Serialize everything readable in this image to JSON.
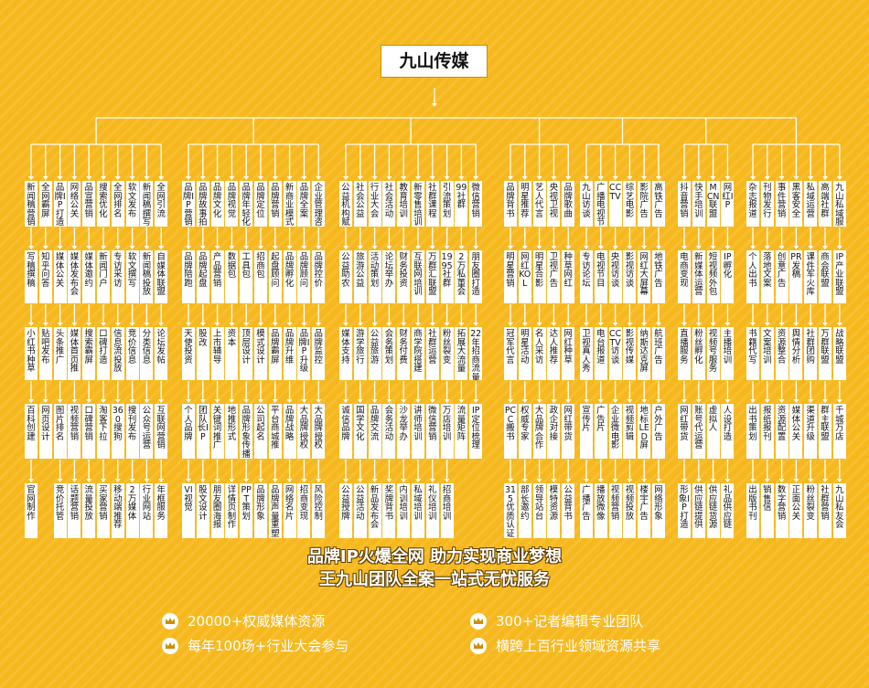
{
  "root": "九山传媒",
  "colors": {
    "background": "#f6b81c",
    "box": "#ffffff",
    "line": "#ffffff"
  },
  "groups": [
    {
      "columns": [
        [
          "新闻稿营销",
          "写稿撰稿",
          "小红书种草",
          "百科创建",
          "官网制作"
        ],
        [
          "全网霸屏",
          "知乎问答",
          "贴吧发布",
          "网页设计"
        ],
        [
          "品牌IP打造",
          "媒体公关",
          "头条推广",
          "图片排名",
          "竞价托管"
        ],
        [
          "网络公关",
          "媒体发布会",
          "媒体首页推",
          "视频营销",
          "话题营销"
        ],
        [
          "品宣营销",
          "媒体邀约",
          "搜索霸屏",
          "口碑营销",
          "流量投放"
        ],
        [
          "搜索优化",
          "新闻门户",
          "口碑打造",
          "淘客下拉",
          "网站页面",
          "买家营销"
        ],
        [
          "全网排名",
          "专访采访",
          "信息流投放",
          "360搜狗",
          "移动端推荐"
        ],
        [
          "软文发布",
          "软文撰写",
          "竞价信息",
          "搜刊发布",
          "2万媒体"
        ],
        [
          "新闻稿撰写",
          "新闻稿投放",
          "分类信息",
          "公众号运营",
          "行业网站"
        ],
        [
          "全网引流",
          "自媒体联盟",
          "论坛发帖",
          "互联网营销",
          "年框服务"
        ]
      ]
    },
    {
      "columns": [
        [
          "品牌IP营销",
          "品牌陪跑",
          "天使投资",
          "个人品牌",
          "VI视觉"
        ],
        [
          "品牌故事拍摄",
          "品牌起盘",
          "股改",
          "团队长IP",
          "股文设计"
        ],
        [
          "品牌文化",
          "产品营销",
          "上市辅导",
          "关键词推广",
          "朋友圈海报"
        ],
        [
          "品牌视觉",
          "数据包",
          "资本",
          "地推形式",
          "详情页制作"
        ],
        [
          "品牌年轻化",
          "工具包",
          "顶层设计",
          "品牌形象传播",
          "PPT策划"
        ],
        [
          "品牌定位",
          "招商包",
          "模式设计",
          "公司起名",
          "品牌形象"
        ],
        [
          "品牌营销",
          "起盘顾问",
          "品牌霸屏",
          "平台商城推",
          "品牌声量重塑"
        ],
        [
          "新商业模式",
          "品牌孵化",
          "品牌升维",
          "品牌战略",
          "网络名片"
        ],
        [
          "品牌全案",
          "品牌顾问",
          "品牌IP升级",
          "大品牌授权",
          "招商变现"
        ],
        [
          "企业管理咨询",
          "品牌控价",
          "品牌监控",
          "大品牌授权",
          "风险控制"
        ]
      ]
    },
    {
      "columns": [
        [
          "公益机构赋能",
          "公益助农",
          "媒体支持",
          "诚信品牌",
          "公益授牌"
        ],
        [
          "社会公益",
          "旅游公益",
          "游学旅行",
          "国学文化",
          "公益活动"
        ],
        [
          "行业大会",
          "活动策划",
          "公益旅游",
          "品牌交流",
          "新品发布会"
        ],
        [
          "社会活动",
          "论坛举办",
          "会务策划",
          "会务活动",
          "奖牌背书"
        ],
        [
          "教育培训",
          "财务投资",
          "财务付费",
          "沙龙举办",
          "内训培训"
        ],
        [
          "新零售培训",
          "互联网培训",
          "商学院搭建",
          "讲师培训",
          "私域培训"
        ],
        [
          "社群课程",
          "万群汇联盟",
          "社群运营",
          "微信营销",
          "礼仪培训"
        ],
        [
          "引流策划",
          "1995社群",
          "粉丝裂变",
          "万店培训",
          "招商培训"
        ],
        [
          "99社群",
          "2万私董会",
          "拓展大流量",
          "流量矩阵"
        ],
        [
          "微信营销",
          "朋友圈打造",
          "22年招商流量池",
          "IP定位梳理"
        ]
      ]
    },
    {
      "columns": [
        [
          "品牌背书",
          "明星营销",
          "冠军代言",
          "PCC搬书",
          "315优质认证"
        ],
        [
          "明星推荐",
          "网红KOL",
          "明星活动",
          "权威专家",
          "部长邀约"
        ],
        [
          "艺人代言",
          "明星合影",
          "名人采访",
          "大品牌合作",
          "领导站台"
        ],
        [
          "央视卫视",
          "卫视广告",
          "达人推荐",
          "政企对接",
          "模特资源"
        ],
        [
          "品牌歌曲",
          "种草网红",
          "网红种草",
          "网红带货",
          "公益背书"
        ]
      ]
    },
    {
      "columns": [
        [
          "九山访谈",
          "专访论坛",
          "卫视真人秀",
          "宣传片",
          "广播广告"
        ],
        [
          "广播电视节目",
          "电视节目",
          "电台报道",
          "广告片",
          "播放微像"
        ],
        [
          "CCTV",
          "央视访谈",
          "CCTV访谈",
          "企业微电影",
          "视频营销"
        ],
        [
          "综艺电影",
          "影视访谈",
          "影视传媒",
          "视频剪辑",
          "视频投放"
        ],
        [
          "影院广告",
          "网红大屏幕",
          "纳斯达克屏",
          "地标LED屏",
          "楼宇广告"
        ],
        [
          "高铁广告",
          "地铁广告",
          "航班广告",
          "户外广告",
          "网络形象"
        ]
      ]
    },
    {
      "columns": [
        [
          "抖音营销",
          "电商变现",
          "直播服务",
          "网红带货",
          "形象IP打造"
        ],
        [
          "快手培训",
          "新媒体运营",
          "粉丝孵化",
          "账号代运营",
          "供应链提供"
        ],
        [
          "MCN联盟",
          "短视频外包",
          "视频号服务",
          "虚拟人",
          "供应链货源"
        ],
        [
          "网红IP",
          "IP孵化",
          "主播培训",
          "人设打造",
          "网红包装",
          "礼品供应链"
        ]
      ]
    },
    {
      "columns": [
        [
          "杂志报道",
          "个人出书",
          "书籍代写",
          "出书策划",
          "出版书刊"
        ],
        [
          "刊物发行",
          "落地文案",
          "文案培训",
          "报纸报刊",
          "销售信"
        ],
        [
          "事件营销",
          "创意广告",
          "资源整合",
          "资源配置",
          "数字营销"
        ],
        [
          "黑客安全",
          "PR发稿",
          "舆情分析",
          "媒体公关",
          "正面公关"
        ],
        [
          "私域运营",
          "课件军火库",
          "社群团购",
          "渠道升级",
          "粉丝裂变"
        ],
        [
          "高端社群",
          "商会联盟",
          "万群联盟",
          "群主联盟",
          "社群营销"
        ],
        [
          "九山私域服务联盟",
          "IP产业联盟",
          "战略联盟",
          "千城万店",
          "九山私友会"
        ]
      ]
    }
  ],
  "tagline": [
    "品牌IP火爆全网 助力实现商业梦想",
    "王九山团队全案一站式无忧服务"
  ],
  "features": [
    "20000+权威媒体资源",
    "300+记者编辑专业团队",
    "每年100场+行业大会参与",
    "横跨上百行业领域资源共享"
  ],
  "icons": {
    "feature": "crown-icon"
  }
}
